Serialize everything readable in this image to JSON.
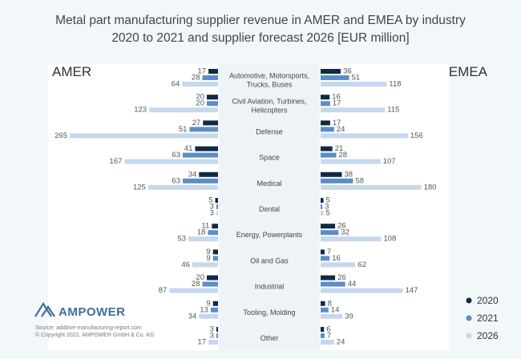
{
  "title_lines": [
    "Metal part manufacturing supplier revenue in AMER and EMEA by industry",
    "2020 to 2021 and supplier forecast 2026 [EUR million]"
  ],
  "left_region": "AMER",
  "right_region": "EMEA",
  "logo": {
    "text": "AMPOWER",
    "icon": "ampower-logo-icon"
  },
  "source_lines": [
    "Source: additive-manufacturing-report.com",
    "© Copyright 2022, AMPOWER GmbH & Co. KG"
  ],
  "colors": {
    "2020": "#0e2a47",
    "2021": "#5b8ec7",
    "2026": "#c5d8ec"
  },
  "chart_data": {
    "type": "bar",
    "orientation": "horizontal-butterfly",
    "title": "Metal part manufacturing supplier revenue in AMER and EMEA by industry 2020 to 2021 and supplier forecast 2026 [EUR million]",
    "series_names": [
      "2020",
      "2021",
      "2026"
    ],
    "legend_position": "bottom-right",
    "categories": [
      {
        "label_lines": [
          "Automotive, Motorsports,",
          "Trucks, Buses"
        ],
        "amer": [
          17,
          28,
          64
        ],
        "emea": [
          36,
          51,
          118
        ]
      },
      {
        "label_lines": [
          "Civil Aviation, Turbines,",
          "Helicopters"
        ],
        "amer": [
          20,
          20,
          123
        ],
        "emea": [
          16,
          17,
          115
        ]
      },
      {
        "label_lines": [
          "Defense"
        ],
        "amer": [
          27,
          51,
          265
        ],
        "emea": [
          17,
          24,
          156
        ]
      },
      {
        "label_lines": [
          "Space"
        ],
        "amer": [
          41,
          63,
          167
        ],
        "emea": [
          21,
          28,
          107
        ]
      },
      {
        "label_lines": [
          "Medical"
        ],
        "amer": [
          34,
          63,
          125
        ],
        "emea": [
          38,
          58,
          180
        ]
      },
      {
        "label_lines": [
          "Dental"
        ],
        "amer": [
          5,
          3,
          3
        ],
        "emea": [
          5,
          3,
          5
        ]
      },
      {
        "label_lines": [
          "Energy, Powerplants"
        ],
        "amer": [
          11,
          18,
          53
        ],
        "emea": [
          26,
          32,
          108
        ]
      },
      {
        "label_lines": [
          "Oil and Gas"
        ],
        "amer": [
          9,
          9,
          46
        ],
        "emea": [
          7,
          16,
          62
        ]
      },
      {
        "label_lines": [
          "Industrial"
        ],
        "amer": [
          20,
          28,
          87
        ],
        "emea": [
          26,
          44,
          147
        ]
      },
      {
        "label_lines": [
          "Tooling, Molding"
        ],
        "amer": [
          9,
          13,
          34
        ],
        "emea": [
          8,
          14,
          39
        ]
      },
      {
        "label_lines": [
          "Other"
        ],
        "amer": [
          3,
          3,
          17
        ],
        "emea": [
          6,
          7,
          24
        ]
      }
    ]
  }
}
